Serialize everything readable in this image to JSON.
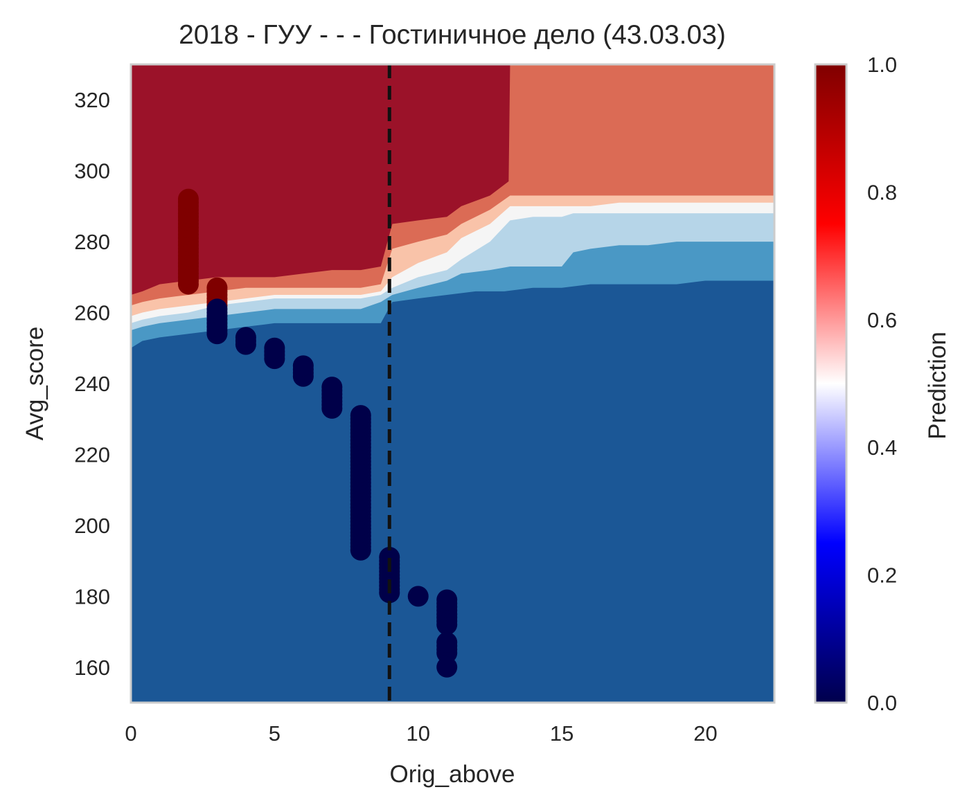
{
  "chart_data": {
    "type": "heatmap",
    "title": "2018 - ГУУ - - - Гостиничное дело (43.03.03)",
    "xlabel": "Orig_above",
    "ylabel": "Avg_score",
    "xlim": [
      0,
      22.4
    ],
    "ylim": [
      150,
      330
    ],
    "xticks": [
      0,
      5,
      10,
      15,
      20
    ],
    "yticks": [
      160,
      180,
      200,
      220,
      240,
      260,
      280,
      300,
      320
    ],
    "grid": false,
    "colorbar": {
      "label": "Prediction",
      "range": [
        0,
        1
      ],
      "ticks": [
        "0.0",
        "0.2",
        "0.4",
        "0.6",
        "0.8",
        "1.0"
      ]
    },
    "contour_levels": [
      {
        "label": "0.0-0.2",
        "color": "#1b5796"
      },
      {
        "label": "0.2-0.3",
        "color": "#4a98c5"
      },
      {
        "label": "0.3-0.45",
        "color": "#b6d5e8"
      },
      {
        "label": "0.45-0.55",
        "color": "#f5f5f5"
      },
      {
        "label": "0.55-0.7",
        "color": "#f9c3a9"
      },
      {
        "label": "0.7-0.8",
        "color": "#db6b55"
      },
      {
        "label": "0.8-1.0",
        "color": "#9b1229"
      }
    ],
    "boundaries": [
      {
        "x": [
          0,
          0.4,
          1,
          2,
          3,
          4,
          5,
          6,
          7,
          8,
          8.7,
          9.1,
          10,
          11,
          12,
          13,
          14,
          15,
          16,
          17,
          18,
          19,
          20,
          21,
          22.4
        ],
        "y": [
          250,
          252,
          253,
          254,
          255,
          256,
          257,
          257,
          257,
          257,
          257,
          263,
          264,
          265,
          266,
          266,
          267,
          267,
          268,
          268,
          268,
          268,
          269,
          269,
          269
        ]
      },
      {
        "x": [
          0,
          0.4,
          1,
          2,
          3,
          4,
          5,
          6,
          7,
          8,
          8.7,
          9.1,
          10,
          11,
          11.5,
          12.5,
          13.2,
          14,
          15,
          15.4,
          16,
          17,
          18,
          19,
          20,
          21,
          22.4
        ],
        "y": [
          255,
          256,
          257,
          258,
          259,
          260,
          261,
          261,
          261,
          261,
          263,
          265,
          267,
          269,
          271,
          272,
          273,
          273,
          273,
          277,
          278,
          279,
          279,
          280,
          280,
          280,
          280
        ]
      },
      {
        "x": [
          0,
          0.4,
          1,
          2,
          3,
          4,
          5,
          6,
          7,
          8,
          8.7,
          9.1,
          10,
          11,
          11.5,
          12.5,
          13.2,
          14,
          15,
          15.4,
          16,
          17,
          18,
          19,
          20,
          21,
          22.4
        ],
        "y": [
          257,
          258,
          259,
          260,
          262,
          263,
          264,
          264,
          264,
          264,
          265,
          267,
          270,
          272,
          275,
          280,
          286,
          287,
          287,
          288,
          288,
          288,
          288,
          288,
          288,
          288,
          288
        ]
      },
      {
        "x": [
          0,
          0.4,
          1,
          2,
          3,
          4,
          5,
          6,
          7,
          8,
          8.7,
          9.1,
          10,
          11,
          11.5,
          12.5,
          13.2,
          14,
          15,
          16,
          17,
          18,
          19,
          20,
          21,
          22.4
        ],
        "y": [
          259,
          260,
          261,
          262,
          263,
          264,
          265,
          265,
          265,
          265,
          266,
          270,
          274,
          277,
          281,
          285,
          290,
          290,
          290,
          290,
          291,
          291,
          291,
          291,
          291,
          291
        ]
      },
      {
        "x": [
          0,
          0.4,
          1,
          2,
          3,
          4,
          5,
          6,
          7,
          8,
          8.7,
          9.1,
          10,
          11,
          11.5,
          12.5,
          13.2,
          14,
          15,
          16,
          17,
          18,
          19,
          20,
          21,
          22.4
        ],
        "y": [
          262,
          263,
          264,
          265,
          266,
          267,
          267,
          267,
          267,
          267,
          268,
          278,
          280,
          282,
          285,
          289,
          293,
          293,
          293,
          293,
          293,
          293,
          293,
          293,
          293,
          293
        ]
      },
      {
        "x": [
          0,
          0.4,
          1,
          2,
          3,
          4,
          5,
          6,
          7,
          8,
          8.7,
          9.1,
          10,
          11,
          11.5,
          12.5,
          13.15,
          13.2,
          14,
          15,
          16,
          17,
          18,
          19,
          20,
          21,
          22.4
        ],
        "y": [
          265,
          266,
          268,
          269,
          270,
          270,
          270,
          271,
          272,
          272,
          273,
          285,
          286,
          287,
          290,
          293,
          297,
          330,
          330,
          330,
          330,
          330,
          330,
          330,
          330,
          330,
          330
        ]
      }
    ],
    "threshold_line": {
      "x": 9,
      "style": "dashed",
      "color": "#111111"
    },
    "marker_colors": {
      "pred_1": "#7f0000",
      "pred_0": "#000049"
    },
    "points": [
      {
        "x": 2,
        "y_min": 268,
        "y_max": 292,
        "pred": 1
      },
      {
        "x": 3,
        "y_min": 262,
        "y_max": 267,
        "pred": 1
      },
      {
        "x": 3,
        "y_min": 254,
        "y_max": 261,
        "pred": 0
      },
      {
        "x": 4,
        "y_min": 251,
        "y_max": 253,
        "pred": 0
      },
      {
        "x": 5,
        "y_min": 247,
        "y_max": 250,
        "pred": 0
      },
      {
        "x": 6,
        "y_min": 242,
        "y_max": 245,
        "pred": 0
      },
      {
        "x": 7,
        "y_min": 233,
        "y_max": 239,
        "pred": 0
      },
      {
        "x": 8,
        "y_min": 193,
        "y_max": 231,
        "pred": 0
      },
      {
        "x": 9,
        "y_min": 181,
        "y_max": 191,
        "pred": 0
      },
      {
        "x": 10,
        "y_min": 180,
        "y_max": 180,
        "pred": 0
      },
      {
        "x": 11,
        "y_min": 172,
        "y_max": 179,
        "pred": 0
      },
      {
        "x": 11,
        "y_min": 164,
        "y_max": 167,
        "pred": 0
      },
      {
        "x": 11,
        "y_min": 160,
        "y_max": 160,
        "pred": 0
      }
    ]
  }
}
